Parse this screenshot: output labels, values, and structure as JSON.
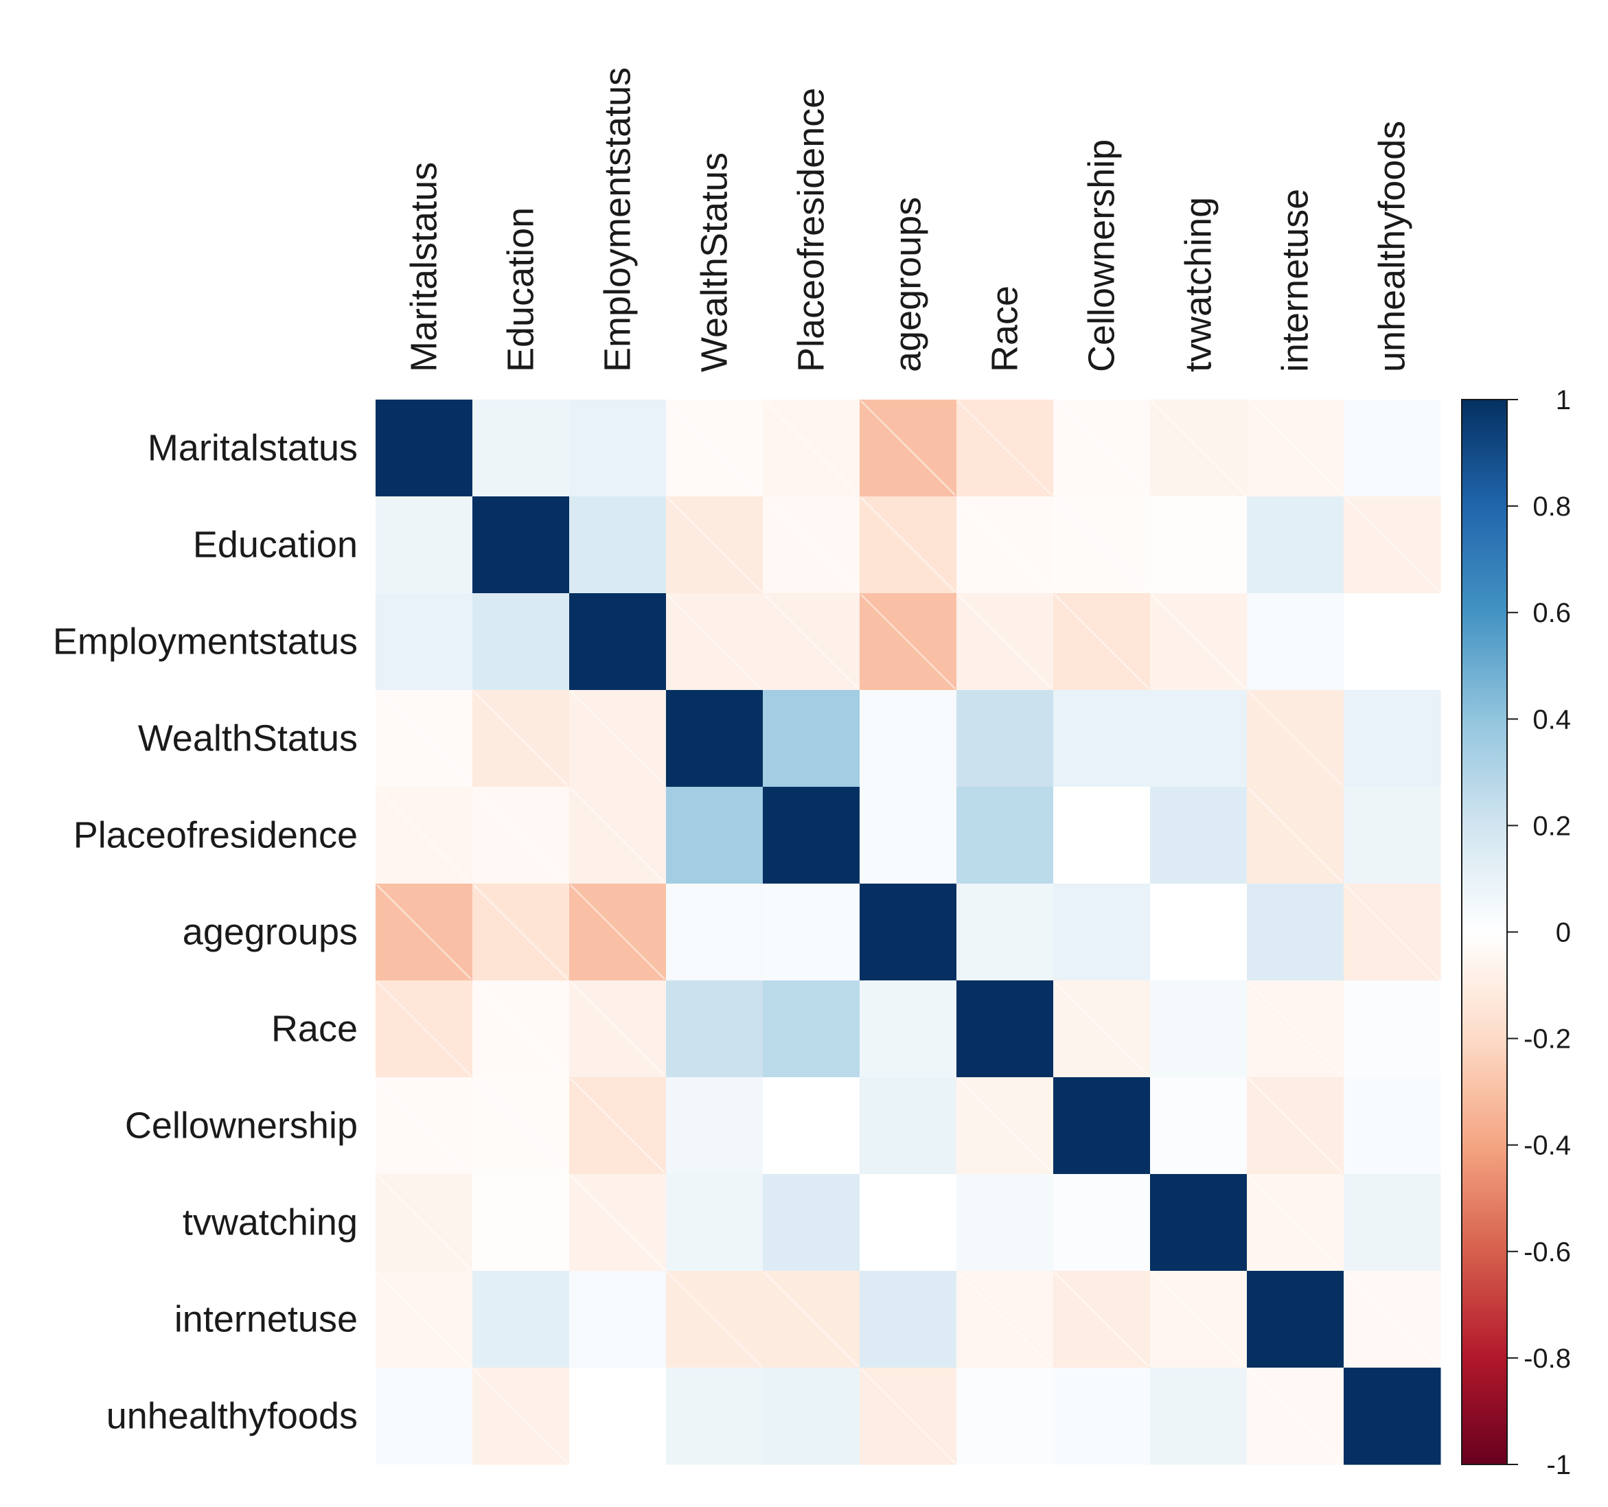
{
  "chart_data": {
    "type": "heatmap",
    "title": "",
    "variables": [
      "Maritalstatus",
      "Education",
      "Employmentstatus",
      "WealthStatus",
      "Placeofresidence",
      "agegroups",
      "Race",
      "Cellownership",
      "tvwatching",
      "internetuse",
      "unhealthyfoods"
    ],
    "matrix": [
      [
        1.0,
        0.08,
        0.1,
        -0.03,
        -0.05,
        -0.3,
        -0.14,
        -0.03,
        -0.06,
        -0.05,
        0.03
      ],
      [
        0.08,
        1.0,
        0.16,
        -0.11,
        -0.04,
        -0.15,
        -0.03,
        -0.02,
        -0.01,
        0.12,
        -0.08
      ],
      [
        0.1,
        0.16,
        1.0,
        -0.08,
        -0.08,
        -0.3,
        -0.08,
        -0.14,
        -0.07,
        0.04,
        0.0
      ],
      [
        -0.03,
        -0.11,
        -0.08,
        1.0,
        0.35,
        0.04,
        0.22,
        0.1,
        0.1,
        -0.11,
        0.1
      ],
      [
        -0.05,
        -0.04,
        -0.08,
        0.35,
        1.0,
        0.03,
        0.27,
        0.0,
        0.15,
        -0.11,
        0.08
      ],
      [
        -0.3,
        -0.15,
        -0.3,
        0.04,
        0.03,
        1.0,
        0.07,
        0.1,
        0.0,
        0.15,
        -0.1
      ],
      [
        -0.14,
        -0.03,
        -0.08,
        0.22,
        0.27,
        0.07,
        1.0,
        -0.06,
        0.05,
        -0.05,
        0.02
      ],
      [
        -0.03,
        -0.02,
        -0.14,
        0.06,
        0.0,
        0.09,
        -0.06,
        1.0,
        0.02,
        -0.1,
        0.03
      ],
      [
        -0.06,
        -0.01,
        -0.07,
        0.07,
        0.15,
        0.0,
        0.05,
        0.02,
        1.0,
        -0.05,
        0.08
      ],
      [
        -0.05,
        0.12,
        0.04,
        -0.11,
        -0.11,
        0.15,
        -0.05,
        -0.1,
        -0.05,
        1.0,
        -0.04
      ],
      [
        0.03,
        -0.08,
        0.0,
        0.08,
        0.09,
        -0.1,
        0.02,
        0.03,
        0.08,
        -0.04,
        1.0
      ]
    ],
    "value_range": [
      -1,
      1
    ],
    "colorbar": {
      "ticks": [
        "1",
        "0.8",
        "0.6",
        "0.4",
        "0.2",
        "0",
        "-0.2",
        "-0.4",
        "-0.6",
        "-0.8",
        "-1"
      ],
      "tick_values": [
        1,
        0.8,
        0.6,
        0.4,
        0.2,
        0,
        -0.2,
        -0.4,
        -0.6,
        -0.8,
        -1
      ],
      "color_stops": [
        "#67001f",
        "#b2182b",
        "#d6604d",
        "#f4a582",
        "#fddbc7",
        "#ffffff",
        "#d1e5f0",
        "#92c5de",
        "#4393c3",
        "#2166ac",
        "#053061"
      ]
    },
    "negative_cells_hatched": true,
    "grid": false,
    "legend_position": "right"
  }
}
